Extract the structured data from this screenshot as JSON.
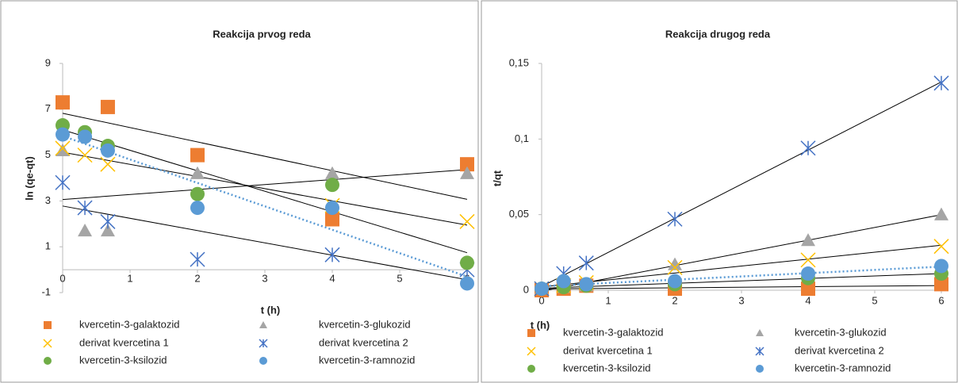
{
  "chart_data": [
    {
      "type": "scatter",
      "title": "Reakcija prvog reda",
      "x_label": "t (h)",
      "y_label": "ln (qe-qt)",
      "x": [
        0,
        0.33,
        0.67,
        2,
        4,
        6
      ],
      "xlim": [
        0,
        6
      ],
      "xticks": [
        0,
        1,
        2,
        3,
        4,
        5,
        6
      ],
      "ylim": [
        -1,
        9
      ],
      "yticks": [
        -1,
        1,
        3,
        5,
        7,
        9
      ],
      "series": [
        {
          "name": "kvercetin-3-galaktozid",
          "color": "#ED7D31",
          "marker": "square",
          "trendline": "solid",
          "values": [
            7.3,
            null,
            7.1,
            5.0,
            2.2,
            4.6
          ]
        },
        {
          "name": "kvercetin-3-glukozid",
          "color": "#A5A5A5",
          "marker": "triangle",
          "trendline": "solid",
          "values": [
            5.2,
            1.7,
            1.7,
            4.2,
            4.2,
            4.2
          ]
        },
        {
          "name": "derivat kvercetina 1",
          "color": "#FFC000",
          "marker": "x",
          "trendline": "solid",
          "values": [
            5.3,
            5.0,
            4.6,
            null,
            2.8,
            2.1
          ]
        },
        {
          "name": "derivat kvercetina 2",
          "color": "#4472C4",
          "marker": "star",
          "trendline": "solid",
          "values": [
            3.8,
            2.7,
            2.1,
            0.45,
            0.65,
            0.0
          ]
        },
        {
          "name": "kvercetin-3-ksilozid",
          "color": "#70AD47",
          "marker": "circle",
          "trendline": "solid",
          "values": [
            6.3,
            6.0,
            5.4,
            3.3,
            3.7,
            0.3
          ]
        },
        {
          "name": "kvercetin-3-ramnozid",
          "color": "#5B9BD5",
          "marker": "circle",
          "trendline": "dotted",
          "values": [
            5.9,
            5.8,
            5.2,
            2.7,
            2.7,
            -0.6
          ]
        }
      ]
    },
    {
      "type": "scatter",
      "title": "Reakcija drugog reda",
      "x_label": "t (h)",
      "y_label": "t/qt",
      "x": [
        0,
        0.33,
        0.67,
        2,
        4,
        6
      ],
      "xlim": [
        0,
        6
      ],
      "xticks": [
        0,
        1,
        2,
        3,
        4,
        5,
        6
      ],
      "ylim": [
        0,
        0.15
      ],
      "yticks": [
        0,
        {
          "value": 0.05,
          "label": "0,05"
        },
        {
          "value": 0.1,
          "label": "0,1"
        },
        {
          "value": 0.15,
          "label": "0,15"
        }
      ],
      "series": [
        {
          "name": "kvercetin-3-galaktozid",
          "color": "#ED7D31",
          "marker": "square",
          "trendline": "solid",
          "values": [
            0.0,
            0.001,
            0.003,
            0.001,
            0.001,
            0.004
          ]
        },
        {
          "name": "kvercetin-3-glukozid",
          "color": "#A5A5A5",
          "marker": "triangle",
          "trendline": "solid",
          "values": [
            0.001,
            0.002,
            0.003,
            0.017,
            0.033,
            0.05
          ]
        },
        {
          "name": "derivat kvercetina 1",
          "color": "#FFC000",
          "marker": "x",
          "trendline": "solid",
          "values": [
            0.001,
            0.003,
            0.005,
            0.015,
            0.02,
            0.029
          ]
        },
        {
          "name": "derivat kvercetina 2",
          "color": "#4472C4",
          "marker": "star",
          "trendline": "solid",
          "values": [
            0.001,
            0.011,
            0.018,
            0.047,
            0.094,
            0.137
          ]
        },
        {
          "name": "kvercetin-3-ksilozid",
          "color": "#70AD47",
          "marker": "circle",
          "trendline": "solid",
          "values": [
            0.001,
            0.002,
            0.003,
            0.004,
            0.008,
            0.011
          ]
        },
        {
          "name": "kvercetin-3-ramnozid",
          "color": "#5B9BD5",
          "marker": "circle",
          "trendline": "dotted",
          "values": [
            0.001,
            0.006,
            0.004,
            0.006,
            0.011,
            0.016
          ]
        }
      ]
    }
  ]
}
